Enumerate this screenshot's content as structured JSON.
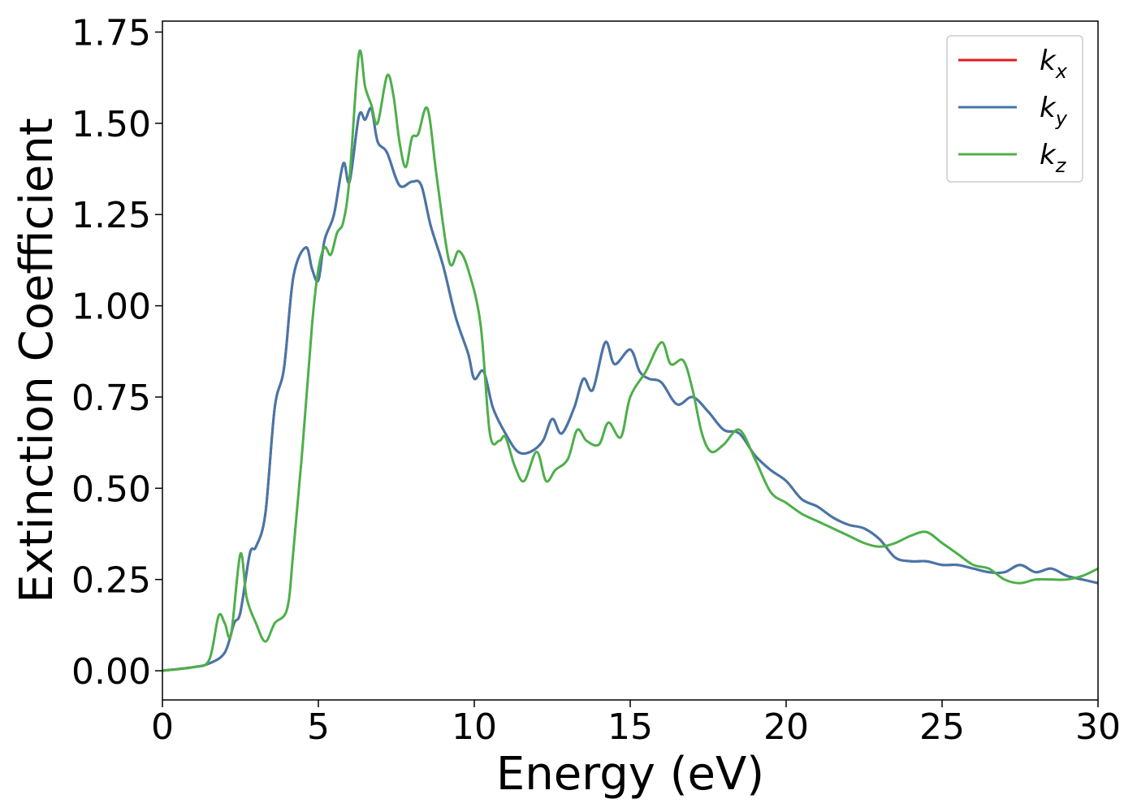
{
  "chart_data": {
    "type": "line",
    "xlabel": "Energy (eV)",
    "ylabel": "Extinction Coefficient",
    "xlim": [
      0,
      30
    ],
    "ylim": [
      -0.08,
      1.78
    ],
    "xticks": [
      0,
      5,
      10,
      15,
      20,
      25,
      30
    ],
    "xtick_labels": [
      "0",
      "5",
      "10",
      "15",
      "20",
      "25",
      "30"
    ],
    "yticks": [
      0,
      0.25,
      0.5,
      0.75,
      1.0,
      1.25,
      1.5,
      1.75
    ],
    "ytick_labels": [
      "0.00",
      "0.25",
      "0.50",
      "0.75",
      "1.00",
      "1.25",
      "1.50",
      "1.75"
    ],
    "grid": false,
    "legend_position": "top-right",
    "series": [
      {
        "name": "k",
        "subscript": "x",
        "color": "#e41a1c",
        "x": [
          0,
          1,
          1.5,
          2,
          2.3,
          2.5,
          2.8,
          3.0,
          3.3,
          3.6,
          3.9,
          4.2,
          4.6,
          4.8,
          5.0,
          5.2,
          5.5,
          5.8,
          6.0,
          6.3,
          6.5,
          6.7,
          6.9,
          7.2,
          7.6,
          8.0,
          8.3,
          8.6,
          9.0,
          9.4,
          9.8,
          10.0,
          10.3,
          10.6,
          11.0,
          11.4,
          11.8,
          12.2,
          12.5,
          12.8,
          13.2,
          13.5,
          13.8,
          14.2,
          14.5,
          15.0,
          15.3,
          15.6,
          16.0,
          16.5,
          17.0,
          17.5,
          18.0,
          18.5,
          19.0,
          19.5,
          20.0,
          20.5,
          21.0,
          21.5,
          22.0,
          22.5,
          23.0,
          23.5,
          24.0,
          24.5,
          25.0,
          25.5,
          26.0,
          26.5,
          27.0,
          27.5,
          28.0,
          28.5,
          29.0,
          29.5,
          30.0
        ],
        "y": [
          0.0,
          0.01,
          0.02,
          0.05,
          0.13,
          0.16,
          0.32,
          0.34,
          0.43,
          0.72,
          0.83,
          1.08,
          1.16,
          1.1,
          1.07,
          1.18,
          1.25,
          1.39,
          1.34,
          1.52,
          1.51,
          1.54,
          1.45,
          1.42,
          1.33,
          1.34,
          1.33,
          1.22,
          1.11,
          0.97,
          0.87,
          0.8,
          0.82,
          0.72,
          0.65,
          0.6,
          0.6,
          0.63,
          0.69,
          0.65,
          0.72,
          0.8,
          0.77,
          0.9,
          0.84,
          0.88,
          0.82,
          0.8,
          0.79,
          0.73,
          0.75,
          0.71,
          0.66,
          0.65,
          0.59,
          0.55,
          0.52,
          0.47,
          0.45,
          0.42,
          0.4,
          0.39,
          0.36,
          0.31,
          0.3,
          0.3,
          0.29,
          0.29,
          0.28,
          0.27,
          0.27,
          0.29,
          0.27,
          0.28,
          0.26,
          0.25,
          0.24
        ]
      },
      {
        "name": "k",
        "subscript": "y",
        "color": "#4477aa",
        "x": [
          0,
          1,
          1.5,
          2,
          2.3,
          2.5,
          2.8,
          3.0,
          3.3,
          3.6,
          3.9,
          4.2,
          4.6,
          4.8,
          5.0,
          5.2,
          5.5,
          5.8,
          6.0,
          6.3,
          6.5,
          6.7,
          6.9,
          7.2,
          7.6,
          8.0,
          8.3,
          8.6,
          9.0,
          9.4,
          9.8,
          10.0,
          10.3,
          10.6,
          11.0,
          11.4,
          11.8,
          12.2,
          12.5,
          12.8,
          13.2,
          13.5,
          13.8,
          14.2,
          14.5,
          15.0,
          15.3,
          15.6,
          16.0,
          16.5,
          17.0,
          17.5,
          18.0,
          18.5,
          19.0,
          19.5,
          20.0,
          20.5,
          21.0,
          21.5,
          22.0,
          22.5,
          23.0,
          23.5,
          24.0,
          24.5,
          25.0,
          25.5,
          26.0,
          26.5,
          27.0,
          27.5,
          28.0,
          28.5,
          29.0,
          29.5,
          30.0
        ],
        "y": [
          0.0,
          0.01,
          0.02,
          0.05,
          0.13,
          0.16,
          0.32,
          0.34,
          0.43,
          0.72,
          0.83,
          1.08,
          1.16,
          1.1,
          1.07,
          1.18,
          1.25,
          1.39,
          1.34,
          1.52,
          1.51,
          1.54,
          1.45,
          1.42,
          1.33,
          1.34,
          1.33,
          1.22,
          1.11,
          0.97,
          0.87,
          0.8,
          0.82,
          0.72,
          0.65,
          0.6,
          0.6,
          0.63,
          0.69,
          0.65,
          0.72,
          0.8,
          0.77,
          0.9,
          0.84,
          0.88,
          0.82,
          0.8,
          0.79,
          0.73,
          0.75,
          0.71,
          0.66,
          0.65,
          0.59,
          0.55,
          0.52,
          0.47,
          0.45,
          0.42,
          0.4,
          0.39,
          0.36,
          0.31,
          0.3,
          0.3,
          0.29,
          0.29,
          0.28,
          0.27,
          0.27,
          0.29,
          0.27,
          0.28,
          0.26,
          0.25,
          0.24
        ]
      },
      {
        "name": "k",
        "subscript": "z",
        "color": "#4daf4a",
        "x": [
          0,
          1,
          1.5,
          1.8,
          2.0,
          2.2,
          2.5,
          2.7,
          3.0,
          3.3,
          3.6,
          4.0,
          4.2,
          4.5,
          4.8,
          5.0,
          5.2,
          5.4,
          5.6,
          5.8,
          6.0,
          6.3,
          6.5,
          6.7,
          6.9,
          7.2,
          7.4,
          7.6,
          7.8,
          8.0,
          8.2,
          8.5,
          8.8,
          9.2,
          9.5,
          9.8,
          10.2,
          10.5,
          10.8,
          11.0,
          11.3,
          11.6,
          12.0,
          12.3,
          12.6,
          13.0,
          13.3,
          13.6,
          14.0,
          14.3,
          14.7,
          15.0,
          15.5,
          16.0,
          16.3,
          16.7,
          17.0,
          17.3,
          17.6,
          18.0,
          18.5,
          19.0,
          19.5,
          20.0,
          20.5,
          21.0,
          21.5,
          22.0,
          22.5,
          23.0,
          23.5,
          24.0,
          24.5,
          25.0,
          25.5,
          26.0,
          26.5,
          27.0,
          27.5,
          28.0,
          28.5,
          29.0,
          29.5,
          30.0
        ],
        "y": [
          0.0,
          0.01,
          0.03,
          0.15,
          0.13,
          0.1,
          0.32,
          0.2,
          0.13,
          0.08,
          0.13,
          0.17,
          0.33,
          0.62,
          0.95,
          1.1,
          1.16,
          1.14,
          1.2,
          1.23,
          1.35,
          1.69,
          1.6,
          1.55,
          1.5,
          1.63,
          1.58,
          1.45,
          1.38,
          1.46,
          1.47,
          1.54,
          1.35,
          1.12,
          1.15,
          1.1,
          0.95,
          0.65,
          0.63,
          0.64,
          0.56,
          0.52,
          0.6,
          0.52,
          0.55,
          0.58,
          0.66,
          0.63,
          0.62,
          0.68,
          0.64,
          0.75,
          0.82,
          0.9,
          0.84,
          0.85,
          0.77,
          0.65,
          0.6,
          0.62,
          0.66,
          0.58,
          0.49,
          0.46,
          0.43,
          0.41,
          0.39,
          0.37,
          0.35,
          0.34,
          0.35,
          0.37,
          0.38,
          0.35,
          0.32,
          0.29,
          0.28,
          0.25,
          0.24,
          0.25,
          0.25,
          0.25,
          0.26,
          0.28
        ]
      }
    ]
  }
}
